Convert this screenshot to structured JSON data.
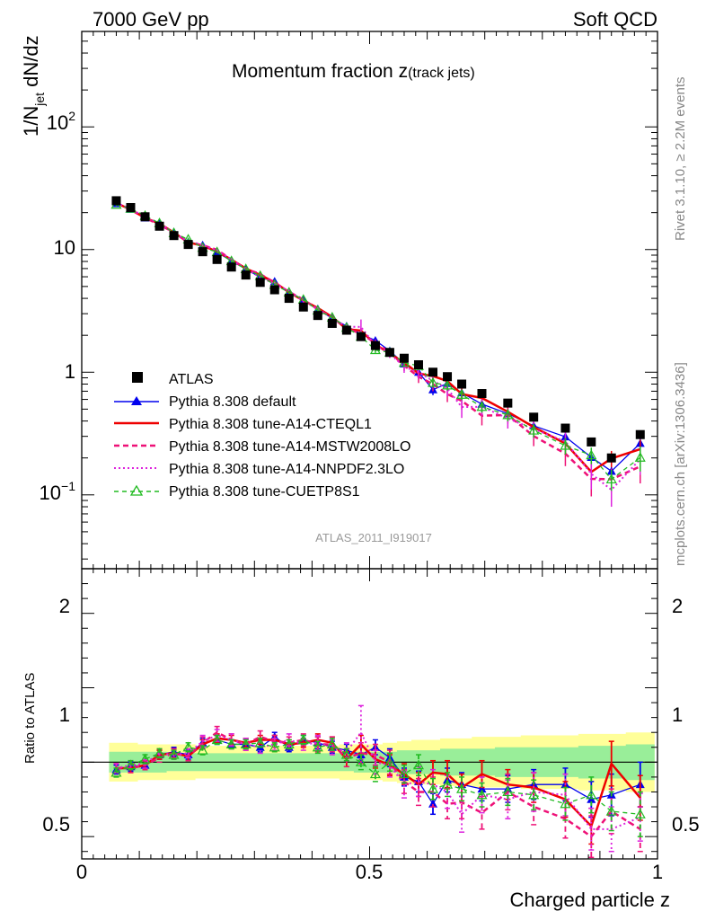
{
  "header": {
    "left": "7000 GeV pp",
    "right": "Soft QCD"
  },
  "side": {
    "rivet": "Rivet 3.1.10, ≥ 2.2M events",
    "mcplots": "mcplots.cern.ch [arXiv:1306.3436]"
  },
  "plot": {
    "title_main": "Momentum fraction z",
    "title_sub": "(track jets)",
    "ylabel_base": "1/N",
    "ylabel_sub": "jet",
    "ylabel_tail": " dN/dz",
    "xlabel": "Charged particle z",
    "ratio_ylabel": "Ratio to ATLAS",
    "analysis": "ATLAS_2011_I919017",
    "main_ticks": {
      "t100": "10",
      "t100_exp": "2",
      "t10": "10",
      "t1": "1",
      "t01": "10",
      "t01_exp": "−1"
    },
    "ratio_ticks": {
      "r2": "2",
      "r1": "1",
      "r05": "0.5",
      "r1_right": "1",
      "r05_right": "0.5"
    },
    "x_ticks": {
      "x0": "0",
      "x05": "0.5",
      "x1": "1"
    }
  },
  "legend": [
    {
      "label": "ATLAS",
      "color": "#000000",
      "style": "square"
    },
    {
      "label": "Pythia 8.308 default",
      "color": "#0000ee",
      "style": "triangle"
    },
    {
      "label": "Pythia 8.308 tune-A14-CTEQL1",
      "color": "#ee0000",
      "style": "solid"
    },
    {
      "label": "Pythia 8.308 tune-A14-MSTW2008LO",
      "color": "#ee1177",
      "style": "dashed"
    },
    {
      "label": "Pythia 8.308 tune-A14-NNPDF2.3LO",
      "color": "#dd22dd",
      "style": "dotted"
    },
    {
      "label": "Pythia 8.308 tune-CUETP8S1",
      "color": "#22bb22",
      "style": "open-triangle"
    }
  ],
  "chart_data": {
    "type": "scatter",
    "x_scale": "linear",
    "y_scale": "log",
    "xlim": [
      0,
      1
    ],
    "ylim": [
      0.025,
      600
    ],
    "ratio_ylim": [
      0.35,
      2.3
    ],
    "x": [
      0.06,
      0.085,
      0.11,
      0.135,
      0.16,
      0.185,
      0.21,
      0.235,
      0.26,
      0.285,
      0.31,
      0.335,
      0.36,
      0.385,
      0.41,
      0.435,
      0.46,
      0.485,
      0.51,
      0.535,
      0.56,
      0.585,
      0.61,
      0.635,
      0.66,
      0.695,
      0.74,
      0.785,
      0.84,
      0.885,
      0.92,
      0.97
    ],
    "atlas": [
      25,
      22,
      18.5,
      15.5,
      13,
      11,
      9.6,
      8.3,
      7.2,
      6.2,
      5.4,
      4.7,
      4.0,
      3.4,
      2.9,
      2.5,
      2.2,
      1.95,
      1.65,
      1.45,
      1.3,
      1.15,
      1.0,
      0.92,
      0.8,
      0.67,
      0.56,
      0.43,
      0.35,
      0.27,
      0.2,
      0.31
    ],
    "band_yellow": [
      0.13,
      0.13,
      0.12,
      0.12,
      0.12,
      0.12,
      0.11,
      0.11,
      0.11,
      0.11,
      0.11,
      0.11,
      0.11,
      0.11,
      0.11,
      0.11,
      0.12,
      0.12,
      0.12,
      0.13,
      0.14,
      0.15,
      0.15,
      0.16,
      0.16,
      0.17,
      0.17,
      0.18,
      0.18,
      0.19,
      0.19,
      0.2
    ],
    "band_green": [
      0.07,
      0.07,
      0.07,
      0.07,
      0.06,
      0.06,
      0.06,
      0.06,
      0.06,
      0.06,
      0.06,
      0.06,
      0.06,
      0.06,
      0.06,
      0.06,
      0.06,
      0.07,
      0.07,
      0.07,
      0.08,
      0.08,
      0.08,
      0.09,
      0.09,
      0.09,
      0.1,
      0.1,
      0.1,
      0.11,
      0.11,
      0.12
    ],
    "series": [
      {
        "name": "Pythia 8.308 default",
        "ratio": [
          0.95,
          0.97,
          0.98,
          1.05,
          1.07,
          1.05,
          1.13,
          1.15,
          1.12,
          1.12,
          1.1,
          1.17,
          1.1,
          1.15,
          1.13,
          1.1,
          1.08,
          1.05,
          1.1,
          1.03,
          0.9,
          0.87,
          0.72,
          0.88,
          0.85,
          0.82,
          0.82,
          0.85,
          0.85,
          0.75,
          0.78,
          0.85
        ],
        "err": [
          0.03,
          0.03,
          0.03,
          0.03,
          0.03,
          0.03,
          0.03,
          0.03,
          0.03,
          0.03,
          0.03,
          0.03,
          0.03,
          0.03,
          0.04,
          0.04,
          0.04,
          0.05,
          0.05,
          0.06,
          0.06,
          0.07,
          0.07,
          0.08,
          0.08,
          0.08,
          0.09,
          0.1,
          0.11,
          0.12,
          0.14,
          0.15
        ]
      },
      {
        "name": "Pythia 8.308 tune-A14-CTEQL1",
        "ratio": [
          0.96,
          0.96,
          0.98,
          1.05,
          1.06,
          1.04,
          1.12,
          1.16,
          1.15,
          1.13,
          1.15,
          1.15,
          1.12,
          1.13,
          1.15,
          1.13,
          1.02,
          1.12,
          1.02,
          0.98,
          0.92,
          0.85,
          0.93,
          0.92,
          0.83,
          0.92,
          0.85,
          0.83,
          0.75,
          0.57,
          0.99,
          0.76
        ],
        "err": [
          0.03,
          0.03,
          0.03,
          0.03,
          0.03,
          0.03,
          0.03,
          0.03,
          0.03,
          0.03,
          0.03,
          0.03,
          0.03,
          0.03,
          0.04,
          0.04,
          0.05,
          0.06,
          0.06,
          0.07,
          0.07,
          0.08,
          0.08,
          0.09,
          0.09,
          0.09,
          0.1,
          0.1,
          0.12,
          0.12,
          0.15,
          0.15
        ]
      },
      {
        "name": "Pythia 8.308 tune-A14-MSTW2008LO",
        "ratio": [
          0.96,
          0.96,
          0.98,
          1.03,
          1.06,
          1.04,
          1.13,
          1.2,
          1.15,
          1.12,
          1.17,
          1.14,
          1.13,
          1.15,
          1.12,
          1.12,
          1.03,
          1.06,
          1.05,
          1.0,
          0.87,
          0.8,
          0.8,
          0.72,
          0.73,
          0.66,
          0.8,
          0.7,
          0.62,
          0.5,
          0.67,
          0.55
        ],
        "err": [
          0.03,
          0.03,
          0.03,
          0.03,
          0.03,
          0.03,
          0.04,
          0.04,
          0.04,
          0.04,
          0.04,
          0.04,
          0.04,
          0.04,
          0.05,
          0.05,
          0.06,
          0.07,
          0.07,
          0.08,
          0.08,
          0.09,
          0.1,
          0.1,
          0.11,
          0.11,
          0.12,
          0.12,
          0.13,
          0.14,
          0.15,
          0.15
        ]
      },
      {
        "name": "Pythia 8.308 tune-A14-NNPDF2.3LO",
        "ratio": [
          0.96,
          0.98,
          0.99,
          1.06,
          1.05,
          1.06,
          1.14,
          1.18,
          1.15,
          1.12,
          1.1,
          1.12,
          1.15,
          1.12,
          1.13,
          1.1,
          1.07,
          1.2,
          1.0,
          0.98,
          0.85,
          0.87,
          0.85,
          0.8,
          0.65,
          0.78,
          0.75,
          0.8,
          0.78,
          0.55,
          0.55,
          0.63
        ],
        "err": [
          0.03,
          0.03,
          0.03,
          0.03,
          0.03,
          0.03,
          0.04,
          0.04,
          0.04,
          0.04,
          0.04,
          0.04,
          0.04,
          0.04,
          0.05,
          0.05,
          0.06,
          0.18,
          0.08,
          0.08,
          0.09,
          0.1,
          0.1,
          0.11,
          0.12,
          0.12,
          0.13,
          0.13,
          0.14,
          0.14,
          0.15,
          0.16
        ]
      },
      {
        "name": "Pythia 8.308 tune-CUETP8S1",
        "ratio": [
          0.93,
          0.98,
          1.02,
          1.06,
          1.05,
          1.1,
          1.08,
          1.15,
          1.12,
          1.12,
          1.13,
          1.1,
          1.12,
          1.15,
          1.1,
          1.12,
          1.05,
          1.0,
          0.92,
          1.0,
          0.92,
          0.98,
          0.82,
          0.85,
          0.82,
          0.78,
          0.8,
          0.78,
          0.72,
          0.78,
          0.67,
          0.65
        ],
        "err": [
          0.03,
          0.03,
          0.03,
          0.03,
          0.03,
          0.03,
          0.03,
          0.03,
          0.03,
          0.03,
          0.03,
          0.03,
          0.03,
          0.03,
          0.04,
          0.04,
          0.04,
          0.05,
          0.05,
          0.06,
          0.06,
          0.07,
          0.07,
          0.08,
          0.08,
          0.08,
          0.09,
          0.1,
          0.11,
          0.12,
          0.13,
          0.15
        ]
      }
    ]
  }
}
